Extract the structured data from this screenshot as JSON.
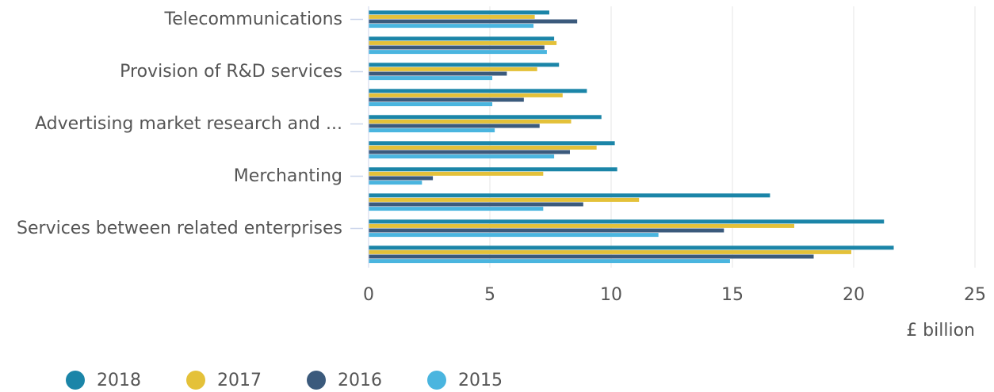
{
  "chart_data": {
    "type": "bar",
    "orientation": "horizontal",
    "categories": [
      "Telecommunications",
      null,
      "Provision of R&D services",
      null,
      "Advertising market research and ...",
      null,
      "Merchanting",
      null,
      "Services between related enterprises",
      null
    ],
    "series": [
      {
        "name": "2018",
        "color": "#1b85a8",
        "values": [
          7.45,
          7.65,
          7.85,
          9.0,
          9.6,
          10.15,
          10.25,
          16.55,
          21.25,
          21.65
        ]
      },
      {
        "name": "2017",
        "color": "#e4c139",
        "values": [
          6.85,
          7.75,
          6.95,
          8.0,
          8.35,
          9.4,
          7.2,
          11.15,
          17.55,
          19.9
        ]
      },
      {
        "name": "2016",
        "color": "#3b5a7c",
        "values": [
          8.6,
          7.25,
          5.7,
          6.4,
          7.05,
          8.3,
          2.65,
          8.85,
          14.65,
          18.35
        ]
      },
      {
        "name": "2015",
        "color": "#4ab5df",
        "values": [
          6.8,
          7.35,
          5.1,
          5.1,
          5.2,
          7.65,
          2.2,
          7.2,
          11.95,
          14.9
        ]
      }
    ],
    "xlabel": "£ billion",
    "xlim": [
      0,
      25
    ],
    "xticks": [
      0,
      5,
      10,
      15,
      20,
      25
    ],
    "grid": true,
    "legend": "bottom-left"
  }
}
